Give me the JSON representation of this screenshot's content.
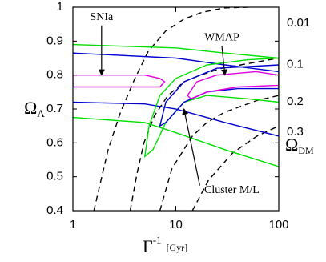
{
  "chart_data": {
    "type": "line",
    "xlim": [
      1,
      100
    ],
    "xticks": [
      1,
      10,
      100
    ],
    "xscale": "log",
    "ylim": [
      0.4,
      1
    ],
    "yticks": [
      0.4,
      0.5,
      0.6,
      0.7,
      0.8,
      0.9,
      1
    ],
    "y_label": {
      "text": "Ω",
      "subscript": "Λ"
    },
    "x_label": {
      "text": "Γ",
      "superscript": "-1",
      "unit": "[Gyr]"
    },
    "right_label": {
      "text": "Ω",
      "subscript": "DM"
    },
    "series": [
      {
        "name": "0.01",
        "color": "#000000",
        "dashed": true,
        "x": [
          1.6,
          2.2,
          2.9,
          4.0,
          5.4,
          8.0,
          12,
          18,
          30,
          50
        ],
        "y": [
          0.4,
          0.58,
          0.69,
          0.79,
          0.87,
          0.93,
          0.965,
          0.985,
          0.998,
          1.0
        ]
      },
      {
        "name": "0.1",
        "color": "#000000",
        "dashed": true,
        "x": [
          3.6,
          4.2,
          4.9,
          6.2,
          8.4,
          12,
          17.3,
          28,
          42.8,
          100
        ],
        "y": [
          0.4,
          0.51,
          0.6,
          0.68,
          0.74,
          0.78,
          0.8,
          0.82,
          0.83,
          0.85
        ]
      },
      {
        "name": "0.2",
        "color": "#000000",
        "dashed": true,
        "x": [
          7.0,
          9.2,
          14.5,
          20,
          29.7,
          61.4,
          100
        ],
        "y": [
          0.4,
          0.525,
          0.62,
          0.66,
          0.69,
          0.725,
          0.74
        ]
      },
      {
        "name": "0.3",
        "color": "#000000",
        "dashed": true,
        "x": [
          14.5,
          20.8,
          35.6,
          61.4,
          100
        ],
        "y": [
          0.4,
          0.49,
          0.57,
          0.62,
          0.65
        ]
      },
      {
        "color": "#00e000",
        "x": [
          1,
          10,
          30,
          100
        ],
        "y": [
          0.89,
          0.88,
          0.865,
          0.85
        ]
      },
      {
        "color": "#00e000",
        "x": [
          1,
          5,
          10,
          30,
          100
        ],
        "y": [
          0.675,
          0.66,
          0.63,
          0.58,
          0.53
        ]
      },
      {
        "color": "#0000d0",
        "x": [
          1,
          10,
          30,
          100
        ],
        "y": [
          0.865,
          0.85,
          0.83,
          0.81
        ]
      },
      {
        "color": "#0000d0",
        "x": [
          1,
          5,
          10,
          30,
          100
        ],
        "y": [
          0.72,
          0.715,
          0.7,
          0.66,
          0.62
        ]
      },
      {
        "color": "#e000e0",
        "closed": true,
        "x": [
          1,
          5,
          7,
          7.8,
          7,
          5,
          1
        ],
        "y": [
          0.8,
          0.8,
          0.79,
          0.78,
          0.765,
          0.765,
          0.765
        ]
      },
      {
        "color": "#00e000",
        "closed": true,
        "x": [
          5,
          5.5,
          7,
          10,
          20,
          50,
          100,
          100,
          50,
          20,
          12,
          8,
          6
        ],
        "y": [
          0.56,
          0.65,
          0.74,
          0.79,
          0.83,
          0.845,
          0.85,
          0.72,
          0.73,
          0.74,
          0.72,
          0.66,
          0.58
        ]
      },
      {
        "color": "#0000d0",
        "closed": true,
        "x": [
          7,
          8,
          12,
          25,
          100,
          100,
          40,
          20,
          12,
          8
        ],
        "y": [
          0.65,
          0.72,
          0.78,
          0.82,
          0.83,
          0.76,
          0.76,
          0.75,
          0.72,
          0.66
        ]
      },
      {
        "color": "#e000e0",
        "closed": true,
        "x": [
          13,
          16,
          25,
          60,
          100,
          100,
          40,
          20,
          14
        ],
        "y": [
          0.74,
          0.78,
          0.8,
          0.81,
          0.8,
          0.77,
          0.765,
          0.75,
          0.73
        ]
      }
    ],
    "annotations": [
      {
        "text": "SNIa",
        "x": 1.9,
        "y": 0.97,
        "arrow_to": [
          1.9,
          0.8
        ]
      },
      {
        "text": "WMAP",
        "x": 28,
        "y": 0.91,
        "arrow_to": [
          30,
          0.8
        ]
      },
      {
        "text": "Cluster M/L",
        "x": 35,
        "y": 0.46,
        "arrow_to": [
          12,
          0.7
        ]
      }
    ]
  }
}
